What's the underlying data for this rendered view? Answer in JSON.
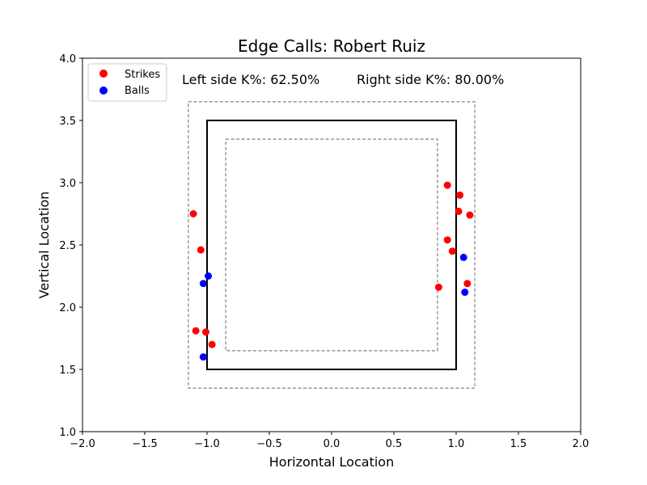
{
  "chart_data": {
    "type": "scatter",
    "title": "Edge Calls: Robert Ruiz",
    "xlabel": "Horizontal Location",
    "ylabel": "Vertical Location",
    "xlim": [
      -2.0,
      2.0
    ],
    "ylim": [
      1.0,
      4.0
    ],
    "xticks": [
      -2.0,
      -1.5,
      -1.0,
      -0.5,
      0.0,
      0.5,
      1.0,
      1.5,
      2.0
    ],
    "yticks": [
      1.0,
      1.5,
      2.0,
      2.5,
      3.0,
      3.5,
      4.0
    ],
    "xtick_labels": [
      "−2.0",
      "−1.5",
      "−1.0",
      "−0.5",
      "0.0",
      "0.5",
      "1.0",
      "1.5",
      "2.0"
    ],
    "ytick_labels": [
      "1.0",
      "1.5",
      "2.0",
      "2.5",
      "3.0",
      "3.5",
      "4.0"
    ],
    "annotations": {
      "left": "Left side K%: 62.50%",
      "right": "Right side K%: 80.00%"
    },
    "legend": {
      "placement": "top-left"
    },
    "zones": {
      "strike_zone": {
        "x": [
          -1.0,
          1.0
        ],
        "y": [
          1.5,
          3.5
        ],
        "style": "solid",
        "color": "#000000"
      },
      "outer_edge": {
        "x": [
          -1.15,
          1.15
        ],
        "y": [
          1.35,
          3.65
        ],
        "style": "dashed",
        "color": "#808080"
      },
      "inner_edge": {
        "x": [
          -0.85,
          0.85
        ],
        "y": [
          1.65,
          3.35
        ],
        "style": "dashed",
        "color": "#808080"
      }
    },
    "series": [
      {
        "name": "Strikes",
        "color": "#ff0000",
        "points": [
          {
            "x": -1.11,
            "y": 2.75
          },
          {
            "x": -1.05,
            "y": 2.46
          },
          {
            "x": -1.09,
            "y": 1.81
          },
          {
            "x": -1.01,
            "y": 1.8
          },
          {
            "x": -0.96,
            "y": 1.7
          },
          {
            "x": 0.93,
            "y": 2.98
          },
          {
            "x": 1.03,
            "y": 2.9
          },
          {
            "x": 1.02,
            "y": 2.77
          },
          {
            "x": 1.11,
            "y": 2.74
          },
          {
            "x": 0.93,
            "y": 2.54
          },
          {
            "x": 0.97,
            "y": 2.45
          },
          {
            "x": 0.86,
            "y": 2.16
          },
          {
            "x": 1.09,
            "y": 2.19
          }
        ]
      },
      {
        "name": "Balls",
        "color": "#0000ff",
        "points": [
          {
            "x": -0.99,
            "y": 2.25
          },
          {
            "x": -1.03,
            "y": 2.19
          },
          {
            "x": -1.03,
            "y": 1.6
          },
          {
            "x": 1.06,
            "y": 2.4
          },
          {
            "x": 1.07,
            "y": 2.12
          }
        ]
      }
    ]
  }
}
